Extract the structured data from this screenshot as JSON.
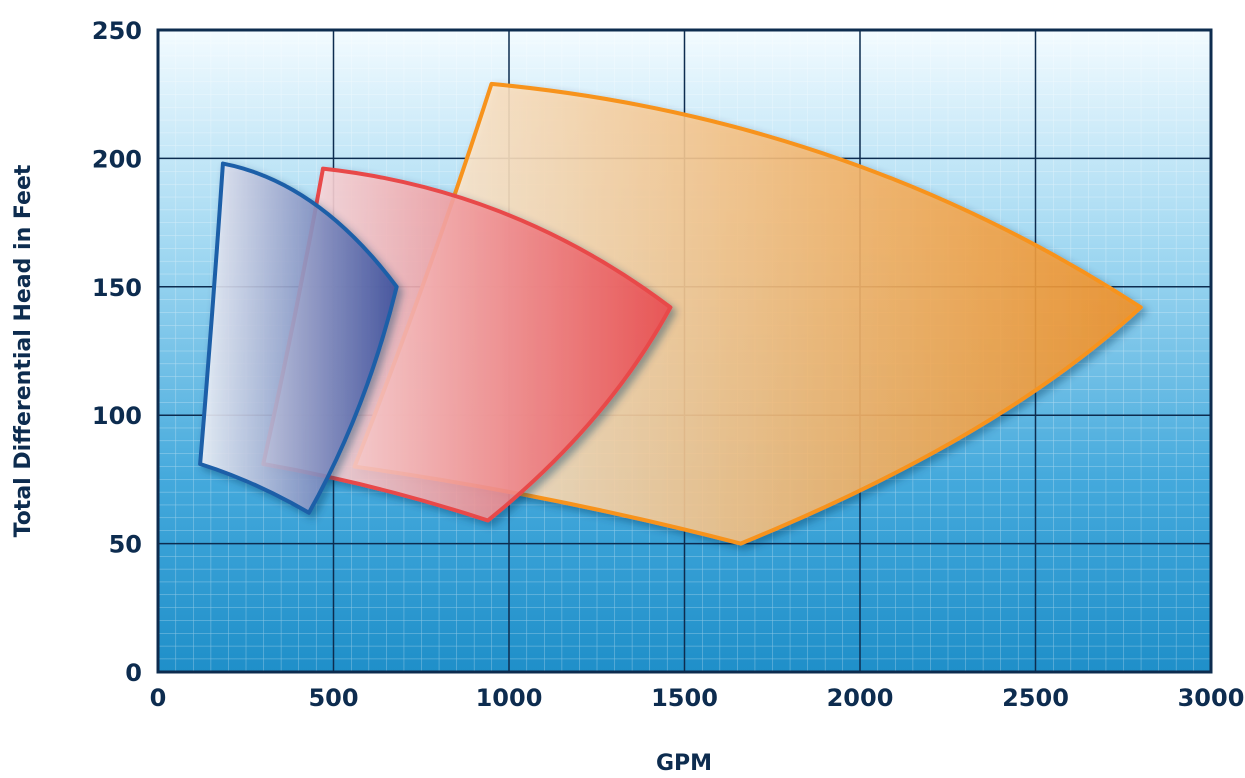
{
  "chart_data": {
    "type": "area",
    "title": "",
    "xlabel": "GPM",
    "ylabel": "Total Differential Head in Feet",
    "xlim": [
      0,
      3000
    ],
    "ylim": [
      0,
      250
    ],
    "x_ticks": [
      0,
      500,
      1000,
      1500,
      2000,
      2500,
      3000
    ],
    "y_ticks": [
      0,
      50,
      100,
      150,
      200,
      250
    ],
    "x_tick_labels": [
      "0",
      "500",
      "1000",
      "1500",
      "2000",
      "2500",
      "3000"
    ],
    "y_tick_labels": [
      "0",
      "50",
      "100",
      "150",
      "200",
      "250"
    ],
    "grid": true,
    "legend": "none",
    "series": [
      {
        "color_edge": "#f7931e",
        "color_fill_start": "#fff4e6",
        "color_fill_end": "#f7931e",
        "corners": {
          "top_left": [
            950,
            229
          ],
          "right_tip": [
            2800,
            142
          ],
          "bottom": [
            1660,
            50
          ],
          "left_bottom": [
            560,
            80
          ]
        }
      },
      {
        "color_edge": "#e8484a",
        "color_fill_start": "#ffeef0",
        "color_fill_end": "#ee4c4e",
        "corners": {
          "top_left": [
            470,
            196
          ],
          "right_tip": [
            1460,
            142
          ],
          "bottom": [
            940,
            59
          ],
          "left_bottom": [
            300,
            81
          ]
        }
      },
      {
        "color_edge": "#1f5ea8",
        "color_fill_start": "#f6f6fb",
        "color_fill_end": "#3a4f9f",
        "corners": {
          "top_left": [
            185,
            198
          ],
          "right_tip": [
            680,
            150
          ],
          "bottom": [
            430,
            62
          ],
          "left_bottom": [
            120,
            81
          ]
        }
      }
    ]
  }
}
